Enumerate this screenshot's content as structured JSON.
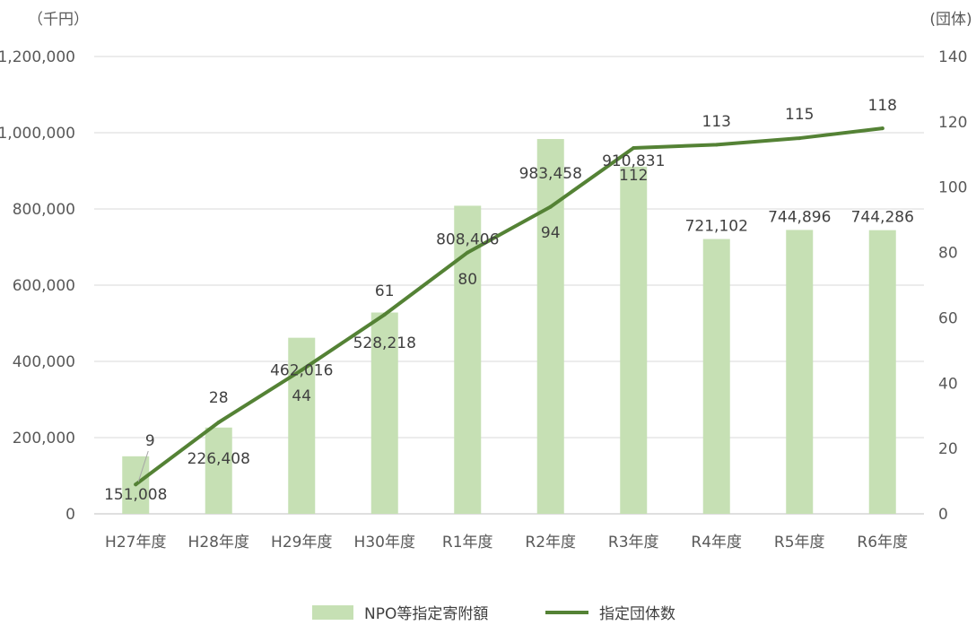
{
  "chart_data": {
    "type": "bar+line",
    "categories": [
      "H27年度",
      "H28年度",
      "H29年度",
      "H30年度",
      "R1年度",
      "R2年度",
      "R3年度",
      "R4年度",
      "R5年度",
      "R6年度"
    ],
    "series": [
      {
        "name": "NPO等指定寄附額",
        "type": "bar",
        "axis": "left",
        "color": "#c6e0b4",
        "values": [
          151008,
          226408,
          462016,
          528218,
          808406,
          983458,
          910831,
          721102,
          744896,
          744286
        ],
        "labels": [
          "151,008",
          "226,408",
          "462,016",
          "528,218",
          "808,406",
          "983,458",
          "910,831",
          "721,102",
          "744,896",
          "744,286"
        ]
      },
      {
        "name": "指定団体数",
        "type": "line",
        "axis": "right",
        "color": "#548235",
        "values": [
          9,
          28,
          44,
          61,
          80,
          94,
          112,
          113,
          115,
          118
        ],
        "labels": [
          "9",
          "28",
          "44",
          "61",
          "80",
          "94",
          "112",
          "113",
          "115",
          "118"
        ]
      }
    ],
    "y_left": {
      "unit": "（千円）",
      "ylim": [
        0,
        1200000
      ],
      "ticks": [
        "0",
        "200,000",
        "400,000",
        "600,000",
        "800,000",
        "1,000,000",
        "1,200,000"
      ]
    },
    "y_right": {
      "unit": "(団体)",
      "ylim": [
        0,
        140
      ],
      "ticks": [
        "0",
        "20",
        "40",
        "60",
        "80",
        "100",
        "120",
        "140"
      ]
    },
    "grid": "horizontal",
    "legend": "bottom"
  }
}
